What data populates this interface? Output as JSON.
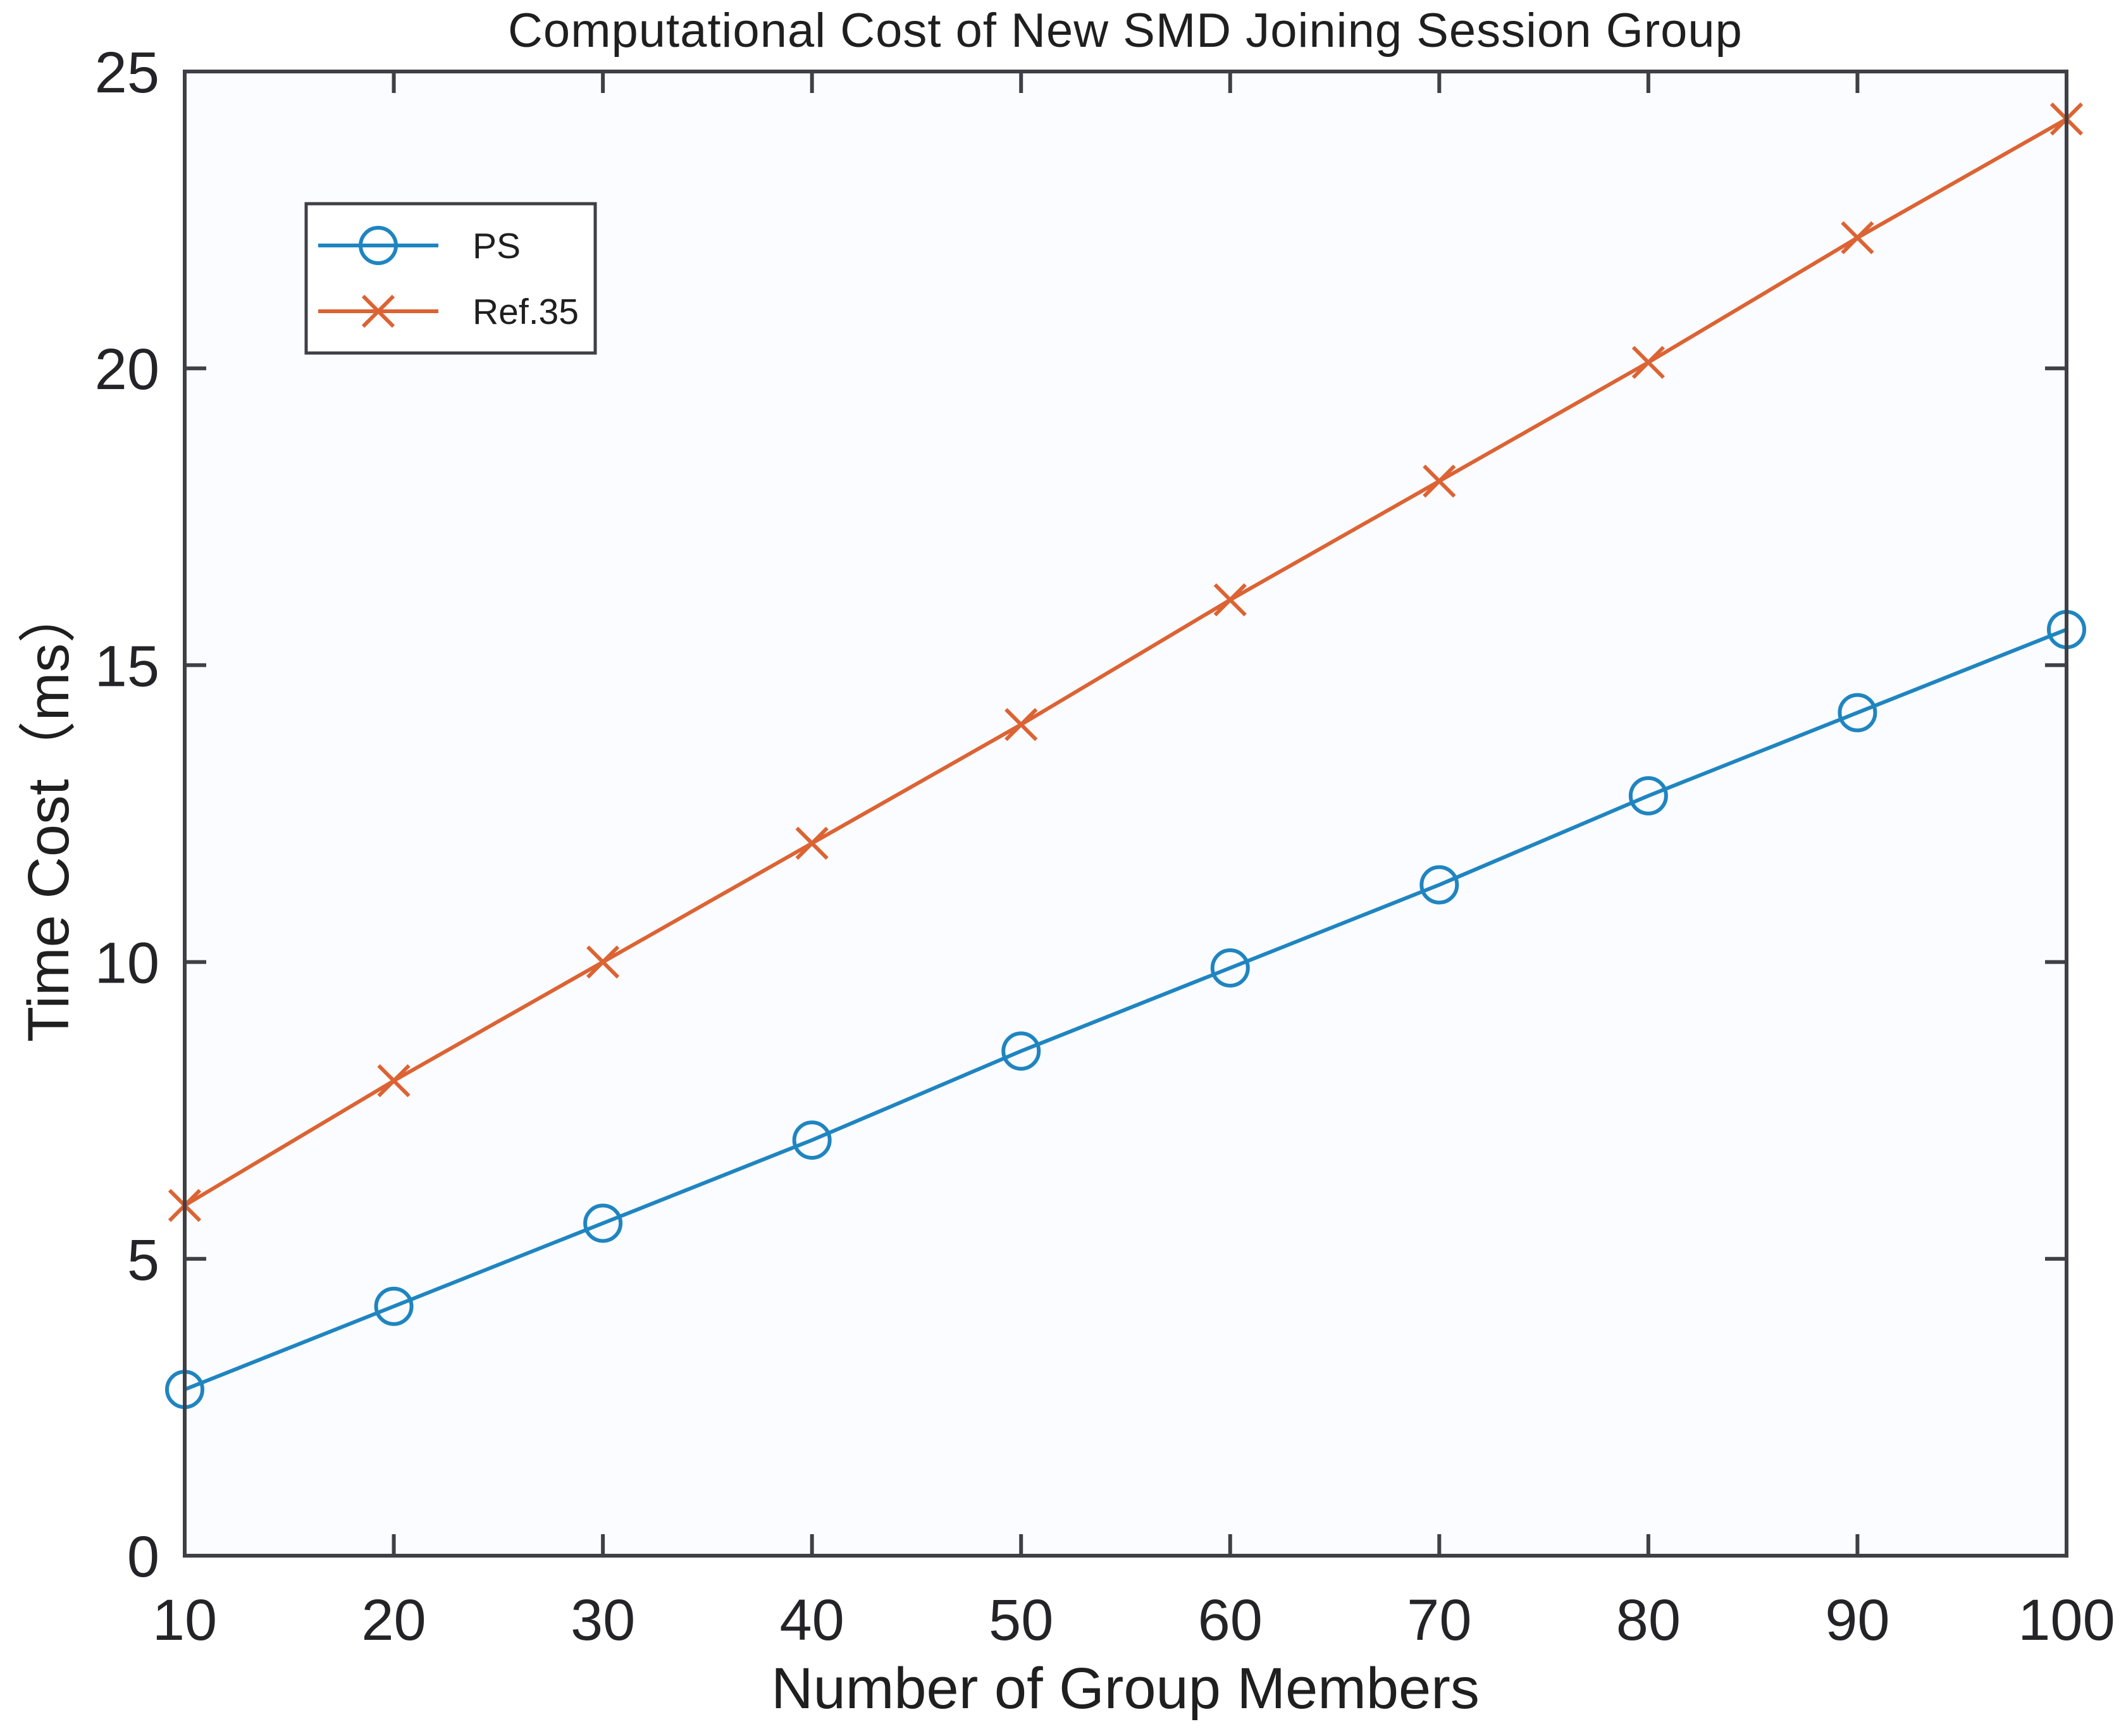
{
  "figure": {
    "title": "Computational Cost of New SMD Joining Session Group",
    "xlabel": "Number of Group Members",
    "ylabel": "Time Cost（ms）"
  },
  "chart_data": {
    "type": "line",
    "title": "Computational Cost of New SMD Joining Session Group",
    "xlabel": "Number of Group Members",
    "ylabel": "Time Cost（ms）",
    "x": [
      10,
      20,
      30,
      40,
      50,
      60,
      70,
      80,
      90,
      100
    ],
    "series": [
      {
        "name": "PS",
        "marker": "circle",
        "color": "#1f85c0",
        "values": [
          2.8,
          4.2,
          5.6,
          7.0,
          8.5,
          9.9,
          11.3,
          12.8,
          14.2,
          15.6
        ]
      },
      {
        "name": "Ref.35",
        "marker": "x",
        "color": "#dc6333",
        "values": [
          5.9,
          8.0,
          10.0,
          12.0,
          14.0,
          16.1,
          18.1,
          20.1,
          22.2,
          24.2
        ]
      }
    ],
    "xlim": [
      10,
      100
    ],
    "ylim": [
      0,
      25
    ],
    "xticks": [
      10,
      20,
      30,
      40,
      50,
      60,
      70,
      80,
      90,
      100
    ],
    "yticks": [
      0,
      5,
      10,
      15,
      20,
      25
    ],
    "grid": false,
    "legend_position": "upper-left",
    "axis_box": true
  },
  "colors": {
    "axis": "#3f3f46",
    "tick_text": "#242428",
    "plot_background": "#fbfcff",
    "legend_background": "#ffffff",
    "series_ps": "#1f85c0",
    "series_ref35": "#dc6333"
  }
}
